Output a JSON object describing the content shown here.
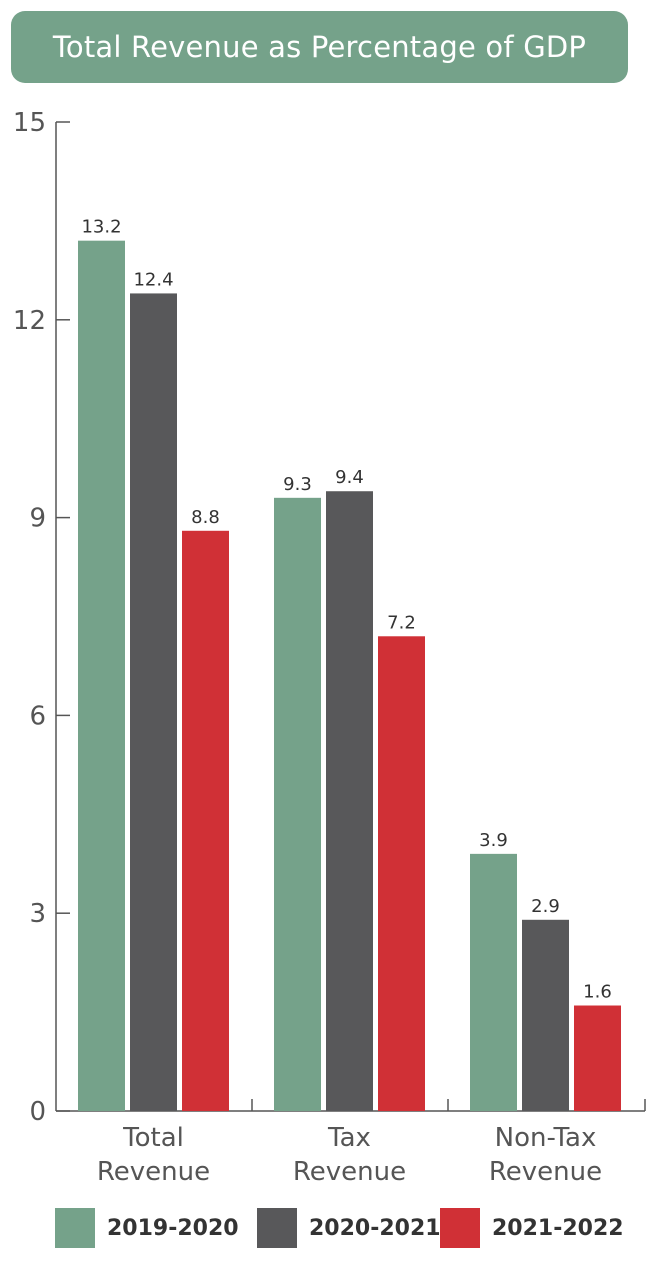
{
  "chart_data": {
    "type": "bar",
    "title": "Total Revenue as Percentage of GDP",
    "categories": [
      [
        "Total",
        "Revenue"
      ],
      [
        "Tax",
        "Revenue"
      ],
      [
        "Non-Tax",
        "Revenue"
      ]
    ],
    "series": [
      {
        "name": "2019-2020",
        "color": "#75a28a",
        "values": [
          13.2,
          9.3,
          3.9
        ]
      },
      {
        "name": "2020-2021",
        "color": "#58585a",
        "values": [
          12.4,
          9.4,
          2.9
        ]
      },
      {
        "name": "2021-2022",
        "color": "#d03036",
        "values": [
          8.8,
          7.2,
          1.6
        ]
      }
    ],
    "y_ticks": [
      0,
      3,
      6,
      9,
      12,
      15
    ],
    "ylim": [
      0,
      15
    ],
    "xlabel": "",
    "ylabel": "",
    "legend_position": "bottom",
    "grid": false
  }
}
